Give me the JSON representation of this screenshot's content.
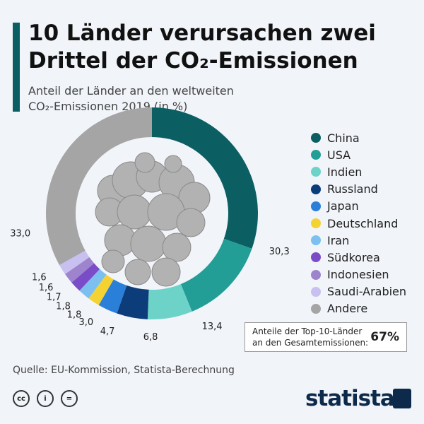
{
  "header": {
    "title": "10 Länder verursachen zwei Drittel der CO₂-Emissionen",
    "subtitle_line1": "Anteil der Länder an den weltweiten",
    "subtitle_line2": "CO₂-Emissionen 2019 (in %)"
  },
  "chart_data": {
    "type": "pie",
    "donut": true,
    "title": "10 Länder verursachen zwei Drittel der CO₂-Emissionen",
    "subtitle": "Anteil der Länder an den weltweiten CO₂-Emissionen 2019 (in %)",
    "categories": [
      "China",
      "USA",
      "Indien",
      "Russland",
      "Japan",
      "Deutschland",
      "Iran",
      "Südkorea",
      "Indonesien",
      "Saudi-Arabien",
      "Andere"
    ],
    "values": [
      30.3,
      13.4,
      6.8,
      4.7,
      3.0,
      1.8,
      1.8,
      1.7,
      1.6,
      1.6,
      33.0
    ],
    "labels": [
      "30,3",
      "13,4",
      "6,8",
      "4,7",
      "3,0",
      "1,8",
      "1,8",
      "1,7",
      "1,6",
      "1,6",
      "33,0"
    ],
    "colors": [
      "#0b5f63",
      "#229e96",
      "#6dd3c8",
      "#0d3c7a",
      "#2a7fd8",
      "#f4d232",
      "#7cc0f0",
      "#7b4cc8",
      "#9e84cc",
      "#c8c0f0",
      "#a5a5a5"
    ],
    "legend_position": "right"
  },
  "summary": {
    "label_line1": "Anteile der Top-10-Länder",
    "label_line2": "an den Gesamtemissionen:",
    "value": "67%"
  },
  "footer": {
    "source": "Quelle: EU-Kommission, Statista-Berechnung",
    "logo": "statista",
    "license_icons": [
      "cc-icon",
      "person-icon",
      "equals-icon"
    ]
  }
}
